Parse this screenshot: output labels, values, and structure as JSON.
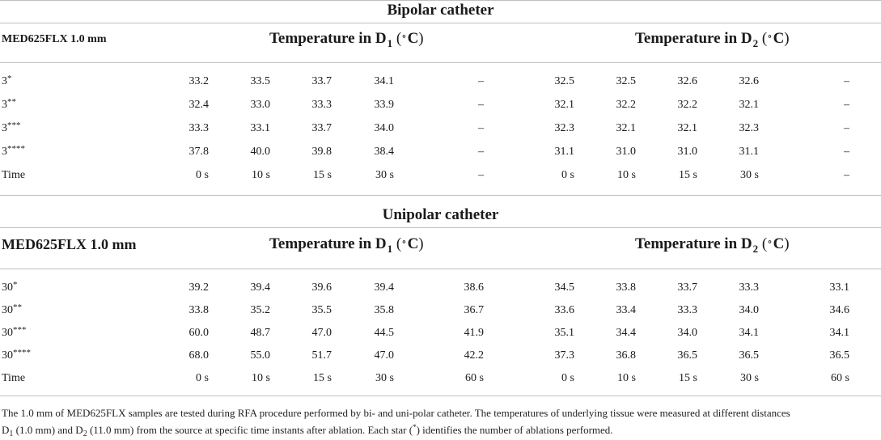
{
  "bipolar": {
    "title": "Bipolar catheter",
    "label_header": "MED625FLX 1.0 mm",
    "d1_header": {
      "prefix": "Temperature in D",
      "sub": "1",
      "unit": "C"
    },
    "d2_header": {
      "prefix": "Temperature in D",
      "sub": "2",
      "unit": "C"
    },
    "rows": [
      {
        "label": "3",
        "stars": "*",
        "d1": [
          "33.2",
          "33.5",
          "33.7",
          "34.1",
          "–"
        ],
        "d2": [
          "32.5",
          "32.5",
          "32.6",
          "32.6",
          "–"
        ]
      },
      {
        "label": "3",
        "stars": "**",
        "d1": [
          "32.4",
          "33.0",
          "33.3",
          "33.9",
          "–"
        ],
        "d2": [
          "32.1",
          "32.2",
          "32.2",
          "32.1",
          "–"
        ]
      },
      {
        "label": "3",
        "stars": "***",
        "d1": [
          "33.3",
          "33.1",
          "33.7",
          "34.0",
          "–"
        ],
        "d2": [
          "32.3",
          "32.1",
          "32.1",
          "32.3",
          "–"
        ]
      },
      {
        "label": "3",
        "stars": "****",
        "d1": [
          "37.8",
          "40.0",
          "39.8",
          "38.4",
          "–"
        ],
        "d2": [
          "31.1",
          "31.0",
          "31.0",
          "31.1",
          "–"
        ]
      },
      {
        "label": "Time",
        "stars": "",
        "d1": [
          "0 s",
          "10 s",
          "15 s",
          "30 s",
          "–"
        ],
        "d2": [
          "0 s",
          "10 s",
          "15 s",
          "30 s",
          "–"
        ]
      }
    ]
  },
  "unipolar": {
    "title": "Unipolar catheter",
    "label_header": "MED625FLX 1.0 mm",
    "d1_header": {
      "prefix": "Temperature in D",
      "sub": "1",
      "unit": "C"
    },
    "d2_header": {
      "prefix": "Temperature in D",
      "sub": "2",
      "unit": "C"
    },
    "rows": [
      {
        "label": "30",
        "stars": "*",
        "d1": [
          "39.2",
          "39.4",
          "39.6",
          "39.4",
          "38.6"
        ],
        "d2": [
          "34.5",
          "33.8",
          "33.7",
          "33.3",
          "33.1"
        ]
      },
      {
        "label": "30",
        "stars": "**",
        "d1": [
          "33.8",
          "35.2",
          "35.5",
          "35.8",
          "36.7"
        ],
        "d2": [
          "33.6",
          "33.4",
          "33.3",
          "34.0",
          "34.6"
        ]
      },
      {
        "label": "30",
        "stars": "***",
        "d1": [
          "60.0",
          "48.7",
          "47.0",
          "44.5",
          "41.9"
        ],
        "d2": [
          "35.1",
          "34.4",
          "34.0",
          "34.1",
          "34.1"
        ]
      },
      {
        "label": "30",
        "stars": "****",
        "d1": [
          "68.0",
          "55.0",
          "51.7",
          "47.0",
          "42.2"
        ],
        "d2": [
          "37.3",
          "36.8",
          "36.5",
          "36.5",
          "36.5"
        ]
      },
      {
        "label": "Time",
        "stars": "",
        "d1": [
          "0 s",
          "10 s",
          "15 s",
          "30 s",
          "60 s"
        ],
        "d2": [
          "0 s",
          "10 s",
          "15 s",
          "30 s",
          "60 s"
        ]
      }
    ]
  },
  "footnote": {
    "line1": "The 1.0 mm of MED625FLX samples are tested during RFA procedure performed by bi- and uni-polar catheter. The temperatures of underlying tissue were measured at different distances",
    "d1": "D",
    "d1_sub": "1",
    "d1_text": " (1.0 mm) and ",
    "d2": "D",
    "d2_sub": "2",
    "d2_text": " (11.0 mm) from the source at specific time instants after ablation. Each star (",
    "star": "*",
    "end": ") identifies the number of ablations performed."
  }
}
